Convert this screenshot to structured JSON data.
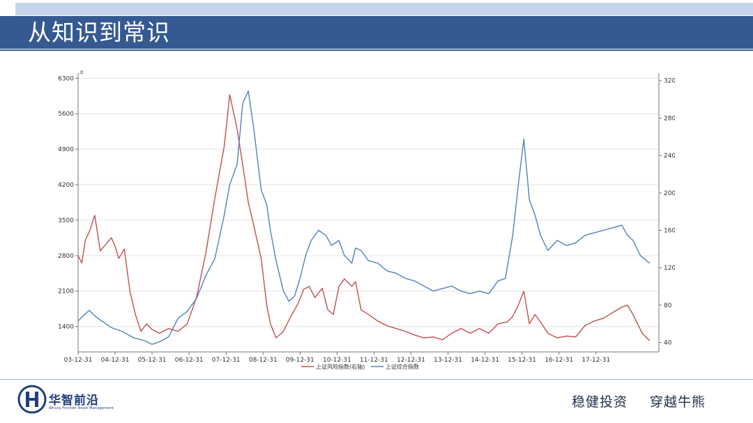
{
  "slide": {
    "title": "从知识到常识"
  },
  "brand": {
    "name": "华智前沿",
    "tagline": "Whura Frontier Asset Management",
    "icon": "h-monogram-icon",
    "color": "#1f3f7a"
  },
  "footer": {
    "slogan_1": "稳健投资",
    "slogan_2": "穿越牛熊"
  },
  "colors": {
    "title_bar": "#355a91",
    "top_strip": "#c7d5ec",
    "risk_series": "#c0504d",
    "composite_series": "#4f81bd"
  },
  "chart_data": {
    "type": "line",
    "title": "",
    "xlabel": "",
    "ylabel_left": "",
    "ylabel_right": "",
    "left_axis_unit_mark": "点",
    "categories": [
      "03-12-31",
      "04-12-31",
      "05-12-31",
      "06-12-31",
      "07-12-31",
      "08-12-31",
      "09-12-31",
      "10-12-31",
      "11-12-31",
      "12-12-31",
      "13-12-31",
      "14-12-31",
      "15-12-31",
      "16-12-31",
      "17-12-31"
    ],
    "y_left": {
      "ticks": [
        "1400",
        "2100",
        "2800",
        "3500",
        "4200",
        "4900",
        "5600",
        "6300"
      ],
      "lim": [
        900,
        6400
      ]
    },
    "y_right": {
      "ticks": [
        "40",
        "80",
        "120",
        "160",
        "200",
        "240",
        "280",
        "320"
      ],
      "lim": [
        30,
        328
      ]
    },
    "grid": true,
    "legend_position": "bottom",
    "series": [
      {
        "name": "上证风险指数(右轴)",
        "axis": "right",
        "color": "#c0504d",
        "x": [
          2003.0,
          2003.1,
          2003.2,
          2003.3,
          2003.45,
          2003.6,
          2003.75,
          2003.9,
          2004.0,
          2004.1,
          2004.25,
          2004.4,
          2004.55,
          2004.7,
          2004.85,
          2005.0,
          2005.2,
          2005.45,
          2005.7,
          2005.95,
          2006.2,
          2006.45,
          2006.7,
          2006.95,
          2007.1,
          2007.3,
          2007.45,
          2007.6,
          2007.75,
          2007.95,
          2008.1,
          2008.2,
          2008.35,
          2008.55,
          2008.75,
          2008.95,
          2009.1,
          2009.25,
          2009.4,
          2009.6,
          2009.75,
          2009.9,
          2010.05,
          2010.2,
          2010.4,
          2010.5,
          2010.65,
          2010.85,
          2011.1,
          2011.35,
          2011.6,
          2011.85,
          2012.1,
          2012.35,
          2012.6,
          2012.85,
          2013.1,
          2013.35,
          2013.6,
          2013.85,
          2014.1,
          2014.35,
          2014.6,
          2014.75,
          2014.9,
          2015.05,
          2015.2,
          2015.35,
          2015.5,
          2015.7,
          2015.95,
          2016.2,
          2016.45,
          2016.7,
          2016.95,
          2017.2,
          2017.45,
          2017.7,
          2017.85,
          2018.0,
          2018.25,
          2018.45
        ],
        "y": [
          133,
          125,
          150,
          158,
          176,
          138,
          145,
          152,
          143,
          130,
          140,
          95,
          70,
          52,
          60,
          54,
          50,
          55,
          52,
          60,
          88,
          135,
          195,
          250,
          305,
          268,
          230,
          190,
          165,
          130,
          80,
          60,
          45,
          52,
          68,
          82,
          97,
          100,
          88,
          98,
          75,
          70,
          100,
          108,
          100,
          105,
          75,
          70,
          63,
          58,
          55,
          52,
          48,
          45,
          46,
          43,
          50,
          55,
          50,
          55,
          50,
          60,
          62,
          68,
          80,
          95,
          60,
          70,
          62,
          50,
          45,
          47,
          46,
          58,
          63,
          66,
          72,
          78,
          80,
          70,
          50,
          42
        ]
      },
      {
        "name": "上证综合指数",
        "axis": "left",
        "color": "#4f81bd",
        "x": [
          2003.0,
          2003.15,
          2003.3,
          2003.5,
          2003.7,
          2003.9,
          2004.2,
          2004.5,
          2004.8,
          2005.0,
          2005.2,
          2005.45,
          2005.7,
          2005.95,
          2006.2,
          2006.45,
          2006.7,
          2006.95,
          2007.1,
          2007.3,
          2007.45,
          2007.6,
          2007.75,
          2007.95,
          2008.1,
          2008.2,
          2008.35,
          2008.55,
          2008.7,
          2008.85,
          2009.0,
          2009.15,
          2009.3,
          2009.5,
          2009.7,
          2009.85,
          2010.05,
          2010.2,
          2010.4,
          2010.5,
          2010.65,
          2010.85,
          2011.1,
          2011.35,
          2011.6,
          2011.85,
          2012.1,
          2012.35,
          2012.6,
          2012.85,
          2013.1,
          2013.35,
          2013.6,
          2013.85,
          2014.1,
          2014.35,
          2014.55,
          2014.75,
          2014.9,
          2015.05,
          2015.2,
          2015.35,
          2015.5,
          2015.7,
          2015.95,
          2016.2,
          2016.45,
          2016.7,
          2016.95,
          2017.2,
          2017.45,
          2017.7,
          2017.85,
          2018.0,
          2018.2,
          2018.45
        ],
        "y": [
          1510,
          1620,
          1720,
          1580,
          1480,
          1380,
          1300,
          1180,
          1120,
          1050,
          1100,
          1200,
          1560,
          1700,
          1950,
          2400,
          2750,
          3600,
          4200,
          4600,
          5800,
          6050,
          5300,
          4100,
          3800,
          3300,
          2700,
          2100,
          1900,
          2000,
          2350,
          2800,
          3100,
          3300,
          3200,
          3000,
          3100,
          2800,
          2650,
          2950,
          2900,
          2700,
          2650,
          2500,
          2450,
          2350,
          2300,
          2200,
          2100,
          2150,
          2200,
          2100,
          2050,
          2100,
          2050,
          2300,
          2350,
          3200,
          4200,
          5100,
          3900,
          3600,
          3200,
          2900,
          3100,
          3000,
          3050,
          3200,
          3250,
          3300,
          3350,
          3400,
          3200,
          3100,
          2800,
          2650
        ]
      }
    ]
  }
}
